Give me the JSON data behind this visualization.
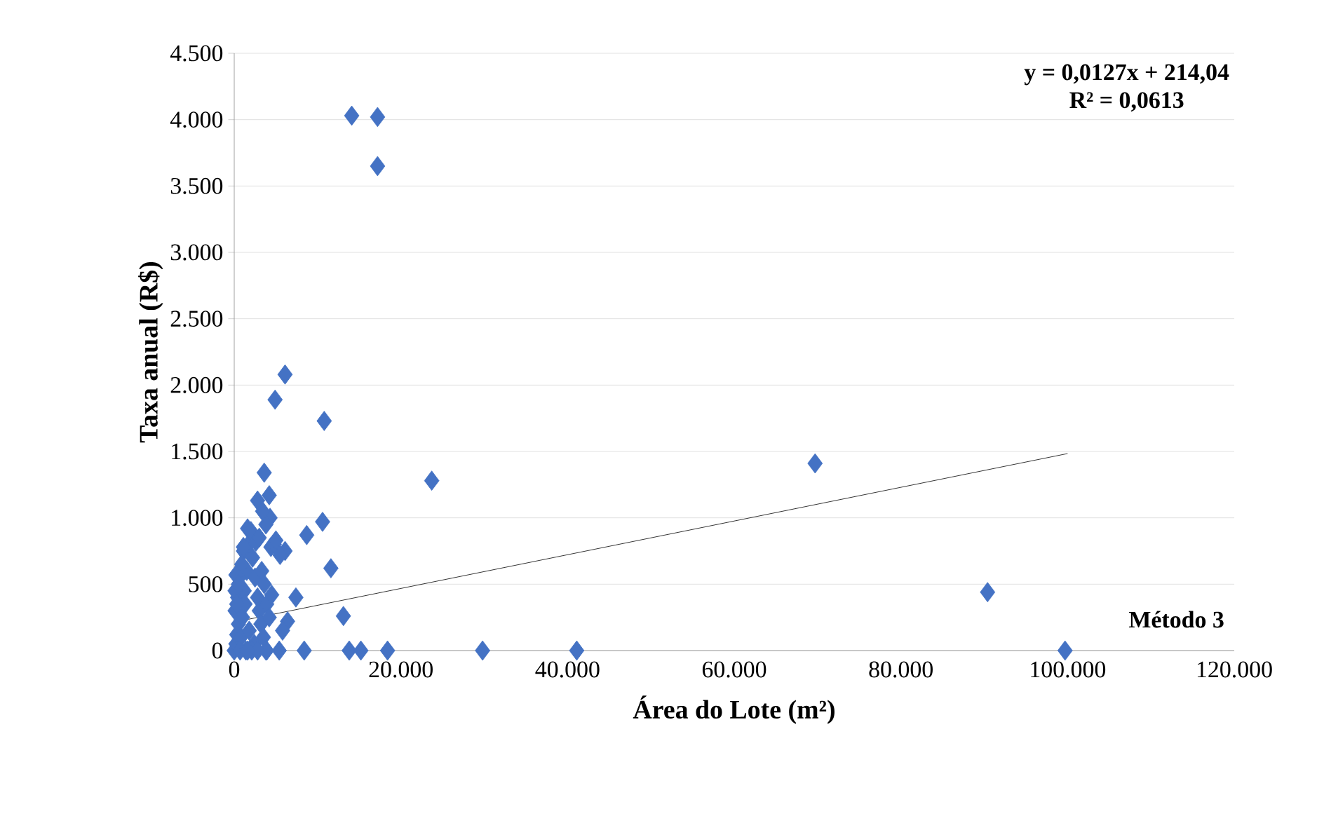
{
  "chart_data": {
    "type": "scatter",
    "xlabel": "Área do Lote (m²)",
    "ylabel": "Taxa anual (R$)",
    "xlim": [
      0,
      120000
    ],
    "ylim": [
      0,
      4500
    ],
    "xticks": [
      0,
      {
        "value": 20000,
        "label": "20.000"
      },
      {
        "value": 40000,
        "label": "40.000"
      },
      {
        "value": 60000,
        "label": "60.000"
      },
      {
        "value": 80000,
        "label": "80.000"
      },
      {
        "value": 100000,
        "label": "100.000"
      },
      {
        "value": 120000,
        "label": "120.000"
      }
    ],
    "yticks": [
      0,
      {
        "value": 500,
        "label": "500"
      },
      {
        "value": 1000,
        "label": "1.000"
      },
      {
        "value": 1500,
        "label": "1.500"
      },
      {
        "value": 2000,
        "label": "2.000"
      },
      {
        "value": 2500,
        "label": "2.500"
      },
      {
        "value": 3000,
        "label": "3.000"
      },
      {
        "value": 3500,
        "label": "3.500"
      },
      {
        "value": 4000,
        "label": "4.000"
      },
      {
        "value": 4500,
        "label": "4.500"
      }
    ],
    "grid": "y",
    "marker": "diamond",
    "series": [
      {
        "color": "#4472c4",
        "x": [
          14100,
          17200,
          17200,
          6100,
          4900,
          10800,
          23700,
          69700,
          90400,
          99700,
          41100,
          29800,
          18400,
          15200,
          13800,
          13100,
          11600,
          10600,
          8700,
          7400,
          8400,
          3600,
          2800,
          4200,
          6100,
          4400,
          6400,
          5800,
          5400,
          3900,
          1600,
          1100,
          0,
          200,
          300,
          500,
          100,
          400,
          800,
          1000,
          1200,
          1500,
          1700,
          2000,
          2200,
          2500,
          2800,
          3000,
          3200,
          3500,
          3800,
          600,
          900,
          1300,
          1800,
          2400,
          2600,
          3000,
          3300,
          3600,
          3900,
          4200,
          4500,
          4800,
          5000,
          5500,
          700,
          1400,
          2100,
          2800,
          100,
          300,
          1100,
          1600,
          4300,
          3800,
          3400,
          200,
          500
        ],
        "values": [
          4030,
          4020,
          3650,
          2080,
          1890,
          1730,
          1280,
          1410,
          440,
          0,
          0,
          0,
          0,
          0,
          0,
          260,
          620,
          970,
          870,
          400,
          0,
          1340,
          1130,
          1170,
          750,
          780,
          220,
          150,
          0,
          0,
          920,
          750,
          0,
          50,
          120,
          200,
          300,
          400,
          100,
          250,
          450,
          600,
          800,
          900,
          700,
          550,
          400,
          300,
          200,
          100,
          0,
          550,
          650,
          350,
          150,
          50,
          820,
          850,
          600,
          500,
          350,
          250,
          420,
          800,
          830,
          720,
          0,
          0,
          0,
          0,
          450,
          350,
          780,
          0,
          1000,
          950,
          1050,
          570,
          500
        ]
      },
      {
        "type": "line",
        "color": "#000000",
        "marker": "none",
        "x": [
          0,
          100000
        ],
        "values": [
          214,
          1484
        ]
      }
    ],
    "annotations": [
      "y = 0,0127x + 214,04",
      "R² = 0,0613",
      "Método 3"
    ]
  }
}
